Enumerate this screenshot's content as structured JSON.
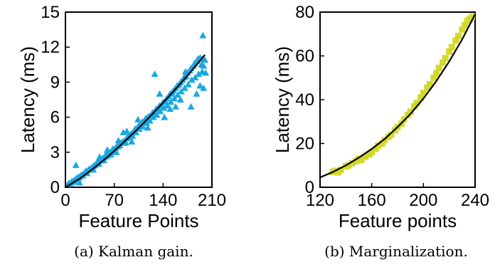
{
  "chart_data": [
    {
      "type": "scatter",
      "xlabel": "Feature Points",
      "ylabel": "Latency (ms)",
      "xlim": [
        0,
        210
      ],
      "ylim": [
        0,
        15
      ],
      "xticks": [
        0,
        70,
        140,
        210
      ],
      "yticks": [
        0,
        3,
        6,
        9,
        12,
        15
      ],
      "caption": "(a) Kalman gain.",
      "marker": "triangle",
      "color": "#1aa7e0",
      "fit_color": "#000000",
      "grid": false,
      "points": [
        [
          3,
          0.2
        ],
        [
          5,
          0.35
        ],
        [
          6,
          0.3
        ],
        [
          8,
          0.4
        ],
        [
          9,
          0.5
        ],
        [
          10,
          0.45
        ],
        [
          12,
          0.6
        ],
        [
          13,
          0.5
        ],
        [
          15,
          0.7
        ],
        [
          16,
          0.8
        ],
        [
          18,
          0.75
        ],
        [
          19,
          0.9
        ],
        [
          20,
          0.85
        ],
        [
          22,
          1.0
        ],
        [
          24,
          1.1
        ],
        [
          25,
          1.0
        ],
        [
          27,
          1.2
        ],
        [
          28,
          1.3
        ],
        [
          30,
          1.4
        ],
        [
          31,
          1.2
        ],
        [
          33,
          1.5
        ],
        [
          35,
          1.6
        ],
        [
          36,
          1.5
        ],
        [
          38,
          1.7
        ],
        [
          40,
          1.8
        ],
        [
          42,
          1.9
        ],
        [
          44,
          2.0
        ],
        [
          45,
          2.1
        ],
        [
          47,
          2.2
        ],
        [
          48,
          2.0
        ],
        [
          50,
          2.3
        ],
        [
          52,
          2.4
        ],
        [
          54,
          2.5
        ],
        [
          55,
          2.3
        ],
        [
          57,
          2.6
        ],
        [
          58,
          2.8
        ],
        [
          60,
          2.7
        ],
        [
          62,
          2.9
        ],
        [
          64,
          3.0
        ],
        [
          65,
          2.8
        ],
        [
          67,
          3.1
        ],
        [
          68,
          3.3
        ],
        [
          70,
          3.2
        ],
        [
          72,
          3.4
        ],
        [
          73,
          3.0
        ],
        [
          75,
          3.5
        ],
        [
          76,
          3.7
        ],
        [
          78,
          3.6
        ],
        [
          80,
          3.8
        ],
        [
          82,
          3.9
        ],
        [
          83,
          4.7
        ],
        [
          85,
          4.0
        ],
        [
          86,
          3.8
        ],
        [
          88,
          4.2
        ],
        [
          90,
          4.4
        ],
        [
          92,
          4.3
        ],
        [
          93,
          4.5
        ],
        [
          95,
          4.6
        ],
        [
          96,
          4.4
        ],
        [
          98,
          4.8
        ],
        [
          100,
          5.0
        ],
        [
          101,
          4.7
        ],
        [
          103,
          5.1
        ],
        [
          105,
          5.3
        ],
        [
          106,
          5.0
        ],
        [
          108,
          5.4
        ],
        [
          110,
          5.6
        ],
        [
          111,
          5.2
        ],
        [
          113,
          5.7
        ],
        [
          115,
          5.9
        ],
        [
          116,
          5.5
        ],
        [
          118,
          6.0
        ],
        [
          120,
          6.1
        ],
        [
          121,
          5.7
        ],
        [
          123,
          6.2
        ],
        [
          125,
          6.4
        ],
        [
          126,
          6.0
        ],
        [
          128,
          6.5
        ],
        [
          130,
          6.7
        ],
        [
          131,
          6.2
        ],
        [
          133,
          6.8
        ],
        [
          135,
          7.0
        ],
        [
          136,
          6.5
        ],
        [
          138,
          7.1
        ],
        [
          140,
          7.3
        ],
        [
          141,
          6.8
        ],
        [
          143,
          7.4
        ],
        [
          145,
          7.6
        ],
        [
          146,
          7.0
        ],
        [
          148,
          7.8
        ],
        [
          150,
          8.0
        ],
        [
          151,
          7.3
        ],
        [
          153,
          8.1
        ],
        [
          155,
          8.3
        ],
        [
          156,
          7.6
        ],
        [
          158,
          8.5
        ],
        [
          160,
          8.7
        ],
        [
          161,
          7.9
        ],
        [
          163,
          8.8
        ],
        [
          165,
          9.0
        ],
        [
          166,
          8.2
        ],
        [
          168,
          9.2
        ],
        [
          170,
          9.4
        ],
        [
          171,
          8.5
        ],
        [
          173,
          9.5
        ],
        [
          175,
          9.8
        ],
        [
          176,
          8.8
        ],
        [
          178,
          10.0
        ],
        [
          180,
          10.2
        ],
        [
          181,
          9.2
        ],
        [
          183,
          10.4
        ],
        [
          185,
          10.6
        ],
        [
          186,
          9.4
        ],
        [
          188,
          10.8
        ],
        [
          190,
          11.0
        ],
        [
          191,
          9.7
        ],
        [
          193,
          11.1
        ],
        [
          195,
          10.5
        ],
        [
          196,
          9.9
        ],
        [
          198,
          10.4
        ],
        [
          200,
          10.9
        ],
        [
          201,
          9.8
        ],
        [
          15,
          1.9
        ],
        [
          20,
          0.4
        ],
        [
          40,
          1.5
        ],
        [
          49,
          2.6
        ],
        [
          60,
          3.2
        ],
        [
          76,
          4.0
        ],
        [
          88,
          4.8
        ],
        [
          95,
          3.9
        ],
        [
          104,
          5.8
        ],
        [
          118,
          5.1
        ],
        [
          128,
          9.7
        ],
        [
          135,
          8.0
        ],
        [
          142,
          6.0
        ],
        [
          150,
          6.7
        ],
        [
          158,
          6.9
        ],
        [
          165,
          7.5
        ],
        [
          172,
          9.9
        ],
        [
          180,
          6.9
        ],
        [
          188,
          8.0
        ],
        [
          193,
          8.7
        ],
        [
          196,
          11.0
        ],
        [
          197,
          13.0
        ],
        [
          198,
          8.5
        ]
      ],
      "fit": [
        [
          0,
          0.0
        ],
        [
          20,
          0.72
        ],
        [
          40,
          1.6
        ],
        [
          60,
          2.58
        ],
        [
          80,
          3.65
        ],
        [
          100,
          4.78
        ],
        [
          120,
          5.98
        ],
        [
          140,
          7.24
        ],
        [
          160,
          8.55
        ],
        [
          180,
          9.92
        ],
        [
          200,
          11.34
        ]
      ]
    },
    {
      "type": "scatter",
      "xlabel": "Feature points",
      "ylabel": "Latency (ms)",
      "xlim": [
        120,
        240
      ],
      "ylim": [
        0,
        80
      ],
      "xticks": [
        120,
        160,
        200,
        240
      ],
      "yticks": [
        0,
        20,
        40,
        60,
        80
      ],
      "caption": "(b) Marginalization.",
      "marker": "square",
      "color": "#d2d92c",
      "fit_color": "#000000",
      "grid": false,
      "points": [
        [
          130,
          7
        ],
        [
          132,
          7.5
        ],
        [
          134,
          6.8
        ],
        [
          136,
          8
        ],
        [
          140,
          9.5
        ],
        [
          142,
          10
        ],
        [
          145,
          11
        ],
        [
          148,
          12
        ],
        [
          150,
          13
        ],
        [
          152,
          12.5
        ],
        [
          155,
          14
        ],
        [
          158,
          15
        ],
        [
          160,
          16
        ],
        [
          163,
          17.5
        ],
        [
          165,
          19
        ],
        [
          168,
          20
        ],
        [
          170,
          21.5
        ],
        [
          173,
          23
        ],
        [
          175,
          24
        ],
        [
          178,
          26
        ],
        [
          180,
          27.5
        ],
        [
          183,
          29
        ],
        [
          185,
          31
        ],
        [
          188,
          33
        ],
        [
          190,
          34.5
        ],
        [
          193,
          37
        ],
        [
          195,
          38.5
        ],
        [
          198,
          41
        ],
        [
          200,
          43
        ],
        [
          203,
          45.5
        ],
        [
          205,
          47
        ],
        [
          208,
          50
        ],
        [
          210,
          52
        ],
        [
          212,
          54.5
        ],
        [
          215,
          57
        ],
        [
          217,
          59
        ],
        [
          220,
          62
        ],
        [
          222,
          64
        ],
        [
          225,
          67
        ],
        [
          227,
          69
        ],
        [
          230,
          72
        ],
        [
          232,
          74
        ],
        [
          234,
          76
        ],
        [
          236,
          77
        ],
        [
          238,
          78
        ]
      ],
      "fit": [
        [
          120,
          4.5
        ],
        [
          130,
          7.0
        ],
        [
          140,
          10.0
        ],
        [
          150,
          13.5
        ],
        [
          160,
          17.5
        ],
        [
          170,
          22.0
        ],
        [
          180,
          27.5
        ],
        [
          190,
          33.5
        ],
        [
          200,
          40.5
        ],
        [
          210,
          48.5
        ],
        [
          220,
          57.5
        ],
        [
          230,
          67.5
        ],
        [
          240,
          79.0
        ]
      ]
    }
  ]
}
